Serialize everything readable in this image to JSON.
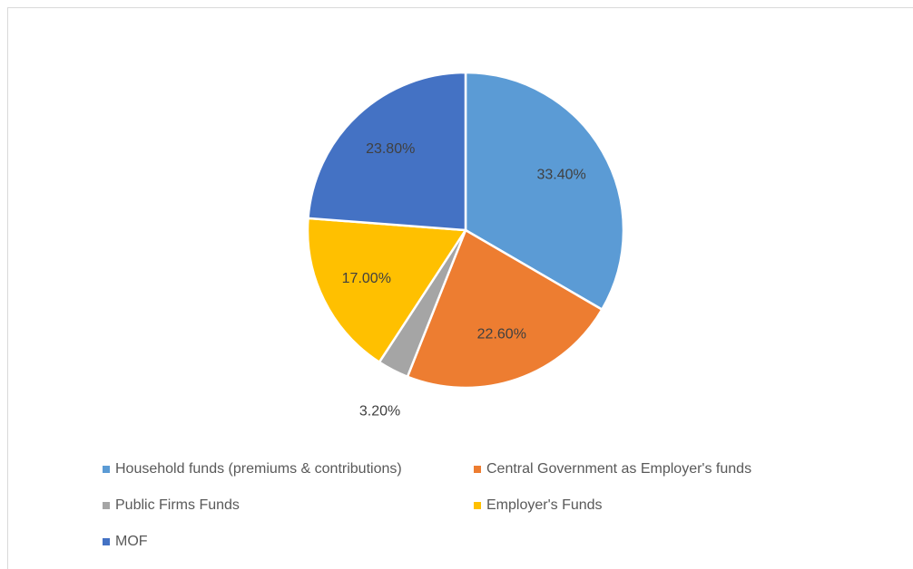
{
  "chart_data": {
    "type": "pie",
    "categories": [
      "Household funds (premiums & contributions)",
      "Central Government as Employer's funds",
      "Public Firms Funds",
      "Employer's Funds",
      "MOF"
    ],
    "values": [
      33.4,
      22.6,
      3.2,
      17.0,
      23.8
    ],
    "data_labels": [
      "33.40%",
      "22.60%",
      "3.20%",
      "17.00%",
      "23.80%"
    ],
    "colors": [
      "#5B9BD5",
      "#ED7D31",
      "#A5A5A5",
      "#FFC000",
      "#4472C4"
    ],
    "legend_position": "bottom",
    "title": ""
  }
}
